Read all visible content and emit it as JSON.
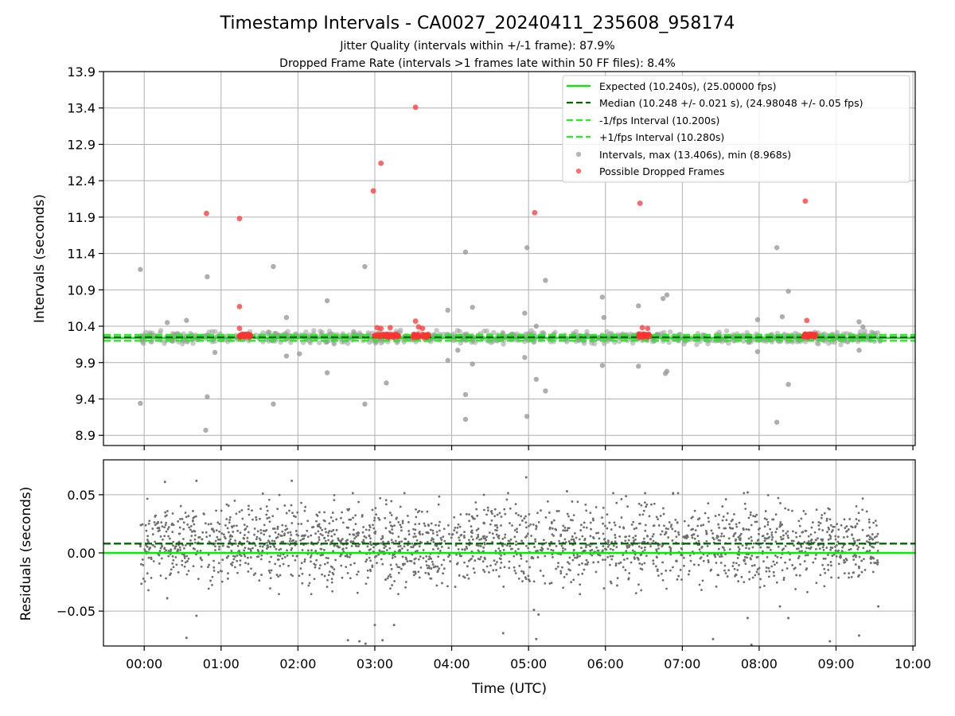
{
  "figure": {
    "title": "Timestamp Intervals - CA0027_20240411_235608_958174",
    "subtitle_1": "Jitter Quality (intervals within +/-1 frame): 87.9%",
    "subtitle_2": "Dropped Frame Rate (intervals >1 frames late within 50 FF files): 8.4%"
  },
  "chart_data": [
    {
      "type": "scatter",
      "name": "intervals-panel",
      "ylabel": "Intervals (seconds)",
      "xlabel": "",
      "xlim_hours": [
        -0.53,
        10.03
      ],
      "ylim": [
        8.76,
        13.9
      ],
      "grid": true,
      "ytick_values": [
        8.9,
        9.4,
        9.9,
        10.4,
        10.9,
        11.4,
        11.9,
        12.4,
        12.9,
        13.4,
        13.9
      ],
      "ytick_labels": [
        "8.9",
        "9.4",
        "9.9",
        "10.4",
        "10.9",
        "11.4",
        "11.9",
        "12.4",
        "12.9",
        "13.4",
        "13.9"
      ],
      "legend_position": "upper right",
      "legend": [
        {
          "label": "Expected (10.240s), (25.00000 fps)",
          "kind": "line-solid",
          "color": "#00ee00"
        },
        {
          "label": "Median (10.248 +/- 0.021 s), (24.98048 +/- 0.05 fps)",
          "kind": "line-dashed",
          "color": "#006400"
        },
        {
          "label": "-1/fps Interval (10.200s)",
          "kind": "line-dashed",
          "color": "#22ee22"
        },
        {
          "label": "+1/fps Interval (10.280s)",
          "kind": "line-dashed",
          "color": "#22ee22"
        },
        {
          "label": "Intervals, max (13.406s), min (8.968s)",
          "kind": "dot",
          "color": "#999999"
        },
        {
          "label": "Possible Dropped Frames",
          "kind": "dot",
          "color": "#ff4d4d"
        }
      ],
      "reference_lines": {
        "expected": 10.24,
        "median": 10.248,
        "minus_one_fps": 10.2,
        "plus_one_fps": 10.28
      },
      "series": [
        {
          "name": "Intervals, max (13.406s), min (8.968s)",
          "color": "#9a9a9a",
          "core_band": {
            "x_range": [
              -0.05,
              9.6
            ],
            "center": 10.245,
            "spread": 0.07
          },
          "points": [
            [
              -0.05,
              11.18
            ],
            [
              -0.05,
              9.34
            ],
            [
              0.82,
              11.08
            ],
            [
              0.82,
              9.43
            ],
            [
              0.8,
              8.97
            ],
            [
              1.68,
              11.22
            ],
            [
              1.68,
              9.33
            ],
            [
              2.38,
              10.75
            ],
            [
              2.38,
              9.76
            ],
            [
              2.87,
              11.22
            ],
            [
              2.87,
              9.33
            ],
            [
              3.15,
              9.62
            ],
            [
              3.95,
              10.62
            ],
            [
              3.95,
              9.93
            ],
            [
              4.08,
              10.07
            ],
            [
              4.18,
              11.42
            ],
            [
              4.18,
              9.46
            ],
            [
              4.18,
              9.12
            ],
            [
              4.27,
              10.66
            ],
            [
              4.27,
              9.88
            ],
            [
              4.95,
              10.58
            ],
            [
              4.95,
              9.97
            ],
            [
              4.98,
              11.48
            ],
            [
              4.98,
              9.16
            ],
            [
              5.1,
              10.4
            ],
            [
              5.1,
              9.67
            ],
            [
              5.22,
              11.03
            ],
            [
              5.22,
              9.51
            ],
            [
              5.96,
              10.8
            ],
            [
              5.96,
              9.86
            ],
            [
              5.98,
              10.52
            ],
            [
              6.43,
              10.68
            ],
            [
              6.43,
              9.85
            ],
            [
              6.75,
              10.78
            ],
            [
              6.8,
              10.83
            ],
            [
              6.78,
              9.75
            ],
            [
              6.8,
              9.78
            ],
            [
              7.98,
              10.49
            ],
            [
              7.98,
              10.05
            ],
            [
              8.23,
              11.48
            ],
            [
              8.23,
              9.08
            ],
            [
              8.3,
              10.53
            ],
            [
              8.38,
              10.88
            ],
            [
              8.38,
              9.6
            ],
            [
              9.3,
              10.46
            ],
            [
              9.3,
              10.07
            ],
            [
              9.35,
              10.39
            ],
            [
              1.85,
              10.52
            ],
            [
              1.85,
              9.99
            ],
            [
              2.02,
              10.02
            ],
            [
              0.92,
              10.04
            ],
            [
              0.3,
              10.45
            ],
            [
              0.55,
              10.48
            ]
          ]
        },
        {
          "name": "Possible Dropped Frames",
          "color": "#ff3333",
          "clusters": [
            {
              "x_range": [
                1.24,
                1.38
              ],
              "y": 10.27
            },
            {
              "x_range": [
                2.98,
                3.32
              ],
              "y": 10.27
            },
            {
              "x_range": [
                3.5,
                3.7
              ],
              "y": 10.27
            },
            {
              "x_range": [
                6.43,
                6.58
              ],
              "y": 10.27
            },
            {
              "x_range": [
                8.58,
                8.74
              ],
              "y": 10.27
            }
          ],
          "points": [
            [
              0.81,
              11.95
            ],
            [
              1.24,
              11.88
            ],
            [
              1.24,
              10.67
            ],
            [
              1.24,
              10.37
            ],
            [
              2.98,
              12.26
            ],
            [
              3.03,
              10.38
            ],
            [
              3.08,
              12.64
            ],
            [
              3.08,
              10.37
            ],
            [
              3.2,
              10.38
            ],
            [
              3.53,
              13.41
            ],
            [
              3.53,
              10.47
            ],
            [
              3.57,
              10.39
            ],
            [
              3.62,
              10.37
            ],
            [
              5.08,
              11.96
            ],
            [
              6.45,
              12.09
            ],
            [
              6.48,
              10.38
            ],
            [
              6.55,
              10.37
            ],
            [
              8.6,
              12.12
            ],
            [
              8.62,
              10.48
            ]
          ]
        }
      ]
    },
    {
      "type": "scatter",
      "name": "residuals-panel",
      "ylabel": "Residuals (seconds)",
      "xlabel": "Time (UTC)",
      "xlim_hours": [
        -0.53,
        10.03
      ],
      "ylim": [
        -0.08,
        0.08
      ],
      "grid": true,
      "ytick_values": [
        0.05,
        0.0,
        -0.05
      ],
      "ytick_labels": [
        "0.05",
        "0.00",
        "−0.05"
      ],
      "xtick_values": [
        0,
        1,
        2,
        3,
        4,
        5,
        6,
        7,
        8,
        9,
        10
      ],
      "xtick_labels": [
        "00:00",
        "01:00",
        "02:00",
        "03:00",
        "04:00",
        "05:00",
        "06:00",
        "07:00",
        "08:00",
        "09:00",
        "10:00"
      ],
      "reference_lines": {
        "expected": 0.0,
        "median": 0.008
      },
      "series": [
        {
          "name": "Residuals",
          "color": "#6e6e6e",
          "band": {
            "x_range": [
              -0.05,
              9.55
            ],
            "center": 0.008,
            "spread": 0.028
          },
          "points": [
            [
              0.27,
              0.061
            ],
            [
              0.68,
              0.062
            ],
            [
              1.92,
              0.062
            ],
            [
              4.97,
              0.065
            ],
            [
              5.5,
              0.053
            ],
            [
              7.85,
              0.052
            ],
            [
              0.55,
              -0.073
            ],
            [
              0.68,
              -0.054
            ],
            [
              2.65,
              -0.075
            ],
            [
              2.8,
              -0.076
            ],
            [
              2.88,
              -0.078
            ],
            [
              3.0,
              -0.062
            ],
            [
              3.1,
              -0.075
            ],
            [
              3.25,
              -0.062
            ],
            [
              4.67,
              -0.069
            ],
            [
              5.07,
              -0.049
            ],
            [
              5.1,
              -0.074
            ],
            [
              5.13,
              -0.053
            ],
            [
              7.4,
              -0.074
            ],
            [
              7.85,
              -0.056
            ],
            [
              7.9,
              -0.079
            ],
            [
              8.27,
              -0.046
            ],
            [
              8.38,
              -0.056
            ],
            [
              8.92,
              -0.076
            ],
            [
              9.3,
              -0.071
            ],
            [
              9.55,
              -0.046
            ],
            [
              0.3,
              -0.039
            ]
          ]
        }
      ]
    }
  ]
}
